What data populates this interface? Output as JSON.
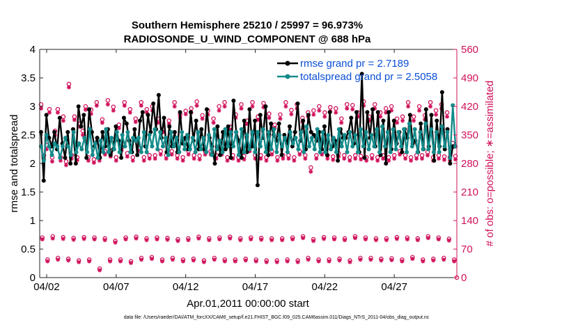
{
  "chart_data": {
    "type": "line",
    "title_line1": "Southern Hemisphere 25210 / 25997 = 96.973%",
    "title_line2": "RADIOSONDE_U_WIND_COMPONENT @ 688 hPa",
    "xlabel": "Apr.01,2011 00:00:00 start",
    "ylabel_left": "rmse and totalspread",
    "ylabel_right": "# of obs: o=possible; ∗=assimilated",
    "xlim": [
      1.5,
      31.5
    ],
    "ylim_left": [
      0,
      4
    ],
    "ylim_right": [
      0,
      560
    ],
    "x_ticks": [
      {
        "value": 2,
        "label": "04/02"
      },
      {
        "value": 7,
        "label": "04/07"
      },
      {
        "value": 12,
        "label": "04/12"
      },
      {
        "value": 17,
        "label": "04/17"
      },
      {
        "value": 22,
        "label": "04/22"
      },
      {
        "value": 27,
        "label": "04/27"
      }
    ],
    "y_ticks_left": [
      "0",
      "0.5",
      "1",
      "1.5",
      "2",
      "2.5",
      "3",
      "3.5",
      "4"
    ],
    "y_ticks_right": [
      "0",
      "70",
      "140",
      "210",
      "280",
      "350",
      "420",
      "490",
      "560"
    ],
    "legend": {
      "position": "top-right",
      "rmse_label": "rmse grand pr = 2.7189",
      "spread_label": "totalspread grand pr = 2.5058"
    },
    "colors": {
      "rmse": "#000000",
      "spread": "#148a8a",
      "obs": "#d0105a",
      "legend_text": "#0a4fd6"
    },
    "series": [
      {
        "name": "rmse",
        "values": [
          2.55,
          1.7,
          2.85,
          2.45,
          2.3,
          2.55,
          2.25,
          2.8,
          2.35,
          2.1,
          2.55,
          2.0,
          2.6,
          2.0,
          3.0,
          2.65,
          2.85,
          2.1,
          2.95,
          2.55,
          2.3,
          2.45,
          2.1,
          2.55,
          2.3,
          2.6,
          2.15,
          2.25,
          2.65,
          2.4,
          2.1,
          2.8,
          2.7,
          2.4,
          2.2,
          2.6,
          2.15,
          2.75,
          2.9,
          2.3,
          2.85,
          2.55,
          3.05,
          2.6,
          3.2,
          2.45,
          2.8,
          2.2,
          2.65,
          2.3,
          2.55,
          2.2,
          2.9,
          2.35,
          2.45,
          2.25,
          2.9,
          2.4,
          2.75,
          2.25,
          2.6,
          2.25,
          2.95,
          2.45,
          2.3,
          2.0,
          2.65,
          2.15,
          2.55,
          2.25,
          2.65,
          2.1,
          3.1,
          2.55,
          2.4,
          2.1,
          2.75,
          2.2,
          2.95,
          2.3,
          2.75,
          1.62,
          2.85,
          2.45,
          3.0,
          2.15,
          2.7,
          2.5,
          2.4,
          2.7,
          2.15,
          2.5,
          2.35,
          2.65,
          2.3,
          2.55,
          3.05,
          2.4,
          2.75,
          2.25,
          2.85,
          2.55,
          2.5,
          2.4,
          2.55,
          2.25,
          2.65,
          2.15,
          2.9,
          2.3,
          2.4,
          2.05,
          2.6,
          2.45,
          2.45,
          2.55,
          2.8,
          2.35,
          2.9,
          2.2,
          3.57,
          2.1,
          2.9,
          2.45,
          2.95,
          2.3,
          2.9,
          2.15,
          2.75,
          2.0,
          2.9,
          2.25,
          2.75,
          2.35,
          2.55,
          2.2,
          2.6,
          2.45,
          2.85,
          2.35,
          2.4,
          2.2,
          2.7,
          2.25,
          2.95,
          2.3,
          2.85,
          2.05,
          2.75,
          2.3,
          3.25,
          2.25,
          2.6,
          2.0,
          2.3,
          2.3
        ]
      },
      {
        "name": "totalspread",
        "values": [
          2.3,
          2.05,
          2.5,
          2.3,
          2.15,
          2.35,
          2.3,
          2.1,
          2.3,
          2.45,
          2.3,
          2.15,
          2.55,
          2.2,
          2.35,
          2.25,
          2.45,
          2.2,
          2.6,
          2.15,
          2.35,
          2.1,
          2.4,
          2.2,
          2.6,
          2.2,
          2.45,
          2.25,
          2.55,
          2.2,
          2.5,
          2.3,
          2.55,
          2.2,
          2.45,
          2.4,
          2.45,
          2.2,
          2.55,
          2.2,
          2.5,
          2.3,
          2.6,
          2.25,
          2.55,
          2.3,
          2.45,
          2.15,
          2.55,
          2.3,
          2.45,
          2.2,
          2.55,
          2.25,
          2.5,
          2.25,
          2.45,
          2.2,
          2.55,
          2.25,
          2.45,
          2.2,
          2.5,
          2.15,
          2.6,
          2.25,
          2.4,
          2.2,
          2.6,
          2.3,
          2.55,
          2.3,
          2.55,
          2.15,
          2.6,
          2.2,
          2.5,
          2.25,
          2.55,
          2.2,
          2.55,
          2.3,
          2.6,
          2.2,
          2.55,
          2.25,
          2.6,
          2.2,
          2.5,
          2.3,
          2.45,
          2.2,
          2.55,
          2.35,
          2.45,
          2.25,
          2.55,
          2.2,
          2.65,
          2.3,
          2.45,
          2.25,
          2.6,
          2.2,
          2.55,
          2.2,
          2.5,
          2.25,
          2.45,
          2.2,
          2.6,
          2.3,
          2.5,
          2.2,
          2.55,
          2.3,
          2.5,
          2.2,
          2.6,
          2.3,
          2.55,
          2.25,
          2.5,
          2.3,
          2.6,
          2.2,
          2.65,
          2.3,
          2.55,
          2.2,
          2.6,
          2.25,
          2.55,
          2.3,
          2.6,
          2.2,
          2.7,
          2.3,
          2.6,
          2.2,
          2.55,
          2.25,
          2.7,
          2.25,
          2.6,
          2.2,
          2.55,
          2.2,
          2.65,
          2.3,
          2.55,
          2.1,
          3.02,
          2.3
        ]
      },
      {
        "name": "obs_possible",
        "values": [
          425,
          300,
          325,
          413,
          295,
          360,
          413,
          295,
          395,
          285,
          475,
          300,
          395,
          295,
          378,
          360,
          420,
          295,
          412,
          290,
          430,
          295,
          388,
          310,
          435,
          305,
          419,
          295,
          375,
          320,
          430,
          305,
          413,
          295,
          390,
          318,
          430,
          295,
          413,
          300,
          420,
          300,
          390,
          310,
          365,
          300,
          385,
          310,
          430,
          300,
          400,
          295,
          409,
          310,
          415,
          300,
          432,
          299,
          398,
          310,
          410,
          310,
          390,
          300,
          420,
          310,
          430,
          295,
          370,
          300,
          400,
          295,
          425,
          298,
          385,
          318,
          430,
          300,
          395,
          300,
          428,
          295,
          402,
          310,
          375,
          295,
          400,
          300,
          430,
          300,
          411,
          295,
          425,
          310,
          392,
          300,
          405,
          270,
          410,
          300,
          420,
          310,
          405,
          300,
          418,
          297,
          415,
          305,
          390,
          300,
          425,
          295,
          423,
          300,
          405,
          298,
          432,
          295,
          395,
          300,
          425,
          295,
          405,
          300,
          415,
          295,
          420,
          300,
          390,
          310,
          395,
          300,
          430,
          295,
          395,
          300,
          420,
          300,
          398,
          308,
          430,
          295,
          410,
          300,
          425,
          297,
          405,
          295,
          330,
          298
        ]
      },
      {
        "name": "obs_assimilated",
        "values": [
          415,
          290,
          315,
          405,
          285,
          350,
          405,
          287,
          385,
          276,
          467,
          292,
          387,
          288,
          370,
          350,
          412,
          287,
          402,
          282,
          422,
          287,
          380,
          302,
          425,
          297,
          410,
          287,
          367,
          312,
          422,
          297,
          405,
          287,
          382,
          310,
          422,
          287,
          405,
          292,
          410,
          292,
          380,
          302,
          357,
          292,
          377,
          302,
          420,
          292,
          392,
          287,
          401,
          302,
          405,
          292,
          422,
          290,
          390,
          302,
          400,
          302,
          380,
          292,
          410,
          302,
          420,
          287,
          362,
          292,
          392,
          287,
          415,
          290,
          377,
          310,
          420,
          292,
          387,
          292,
          418,
          287,
          392,
          302,
          367,
          287,
          390,
          292,
          420,
          292,
          401,
          287,
          415,
          302,
          382,
          292,
          395,
          260,
          400,
          292,
          410,
          302,
          395,
          292,
          408,
          289,
          405,
          297,
          380,
          292,
          415,
          287,
          413,
          292,
          395,
          290,
          422,
          287,
          385,
          292,
          415,
          287,
          395,
          292,
          405,
          287,
          410,
          292,
          380,
          302,
          385,
          292,
          420,
          287,
          385,
          292,
          410,
          292,
          388,
          300,
          420,
          287,
          400,
          292,
          415,
          289,
          395,
          287,
          320,
          290
        ]
      },
      {
        "name": "obs_low_possible",
        "values": [
          98,
          44,
          101,
          48,
          99,
          46,
          97,
          42,
          99,
          44,
          98,
          22,
          96,
          44,
          90,
          44,
          98,
          40,
          100,
          48,
          96,
          50,
          98,
          44,
          97,
          48,
          94,
          44,
          96,
          46,
          100,
          42,
          96,
          48,
          98,
          44,
          100,
          44,
          96,
          46,
          98,
          44,
          97,
          42,
          96,
          42,
          96,
          44,
          98,
          42,
          101,
          48,
          94,
          44,
          99,
          44,
          98,
          46,
          96,
          42,
          101,
          48,
          98,
          48,
          96,
          46,
          96,
          47,
          99,
          44,
          98,
          50,
          96,
          44,
          101,
          46,
          98,
          48,
          95,
          44
        ]
      },
      {
        "name": "obs_low_assimilated",
        "values": [
          94,
          40,
          96,
          44,
          95,
          42,
          93,
          38,
          95,
          40,
          94,
          18,
          92,
          40,
          86,
          40,
          94,
          36,
          96,
          44,
          92,
          46,
          94,
          40,
          93,
          44,
          90,
          40,
          92,
          42,
          96,
          38,
          92,
          44,
          94,
          40,
          96,
          40,
          92,
          42,
          94,
          40,
          93,
          38,
          92,
          38,
          92,
          40,
          94,
          38,
          97,
          44,
          90,
          40,
          95,
          40,
          94,
          42,
          92,
          38,
          97,
          44,
          94,
          44,
          92,
          42,
          92,
          43,
          95,
          40,
          94,
          46,
          92,
          40,
          97,
          42,
          94,
          44,
          91,
          40
        ]
      }
    ],
    "footer_note": "data file: /Users/raeder/DAI/ATM_forcXX/CAM6_setup/f.e21.FHIST_BGC.f09_025.CAM6assim.011/Diags_NTrS_2011-04/obs_diag_output.nc"
  }
}
